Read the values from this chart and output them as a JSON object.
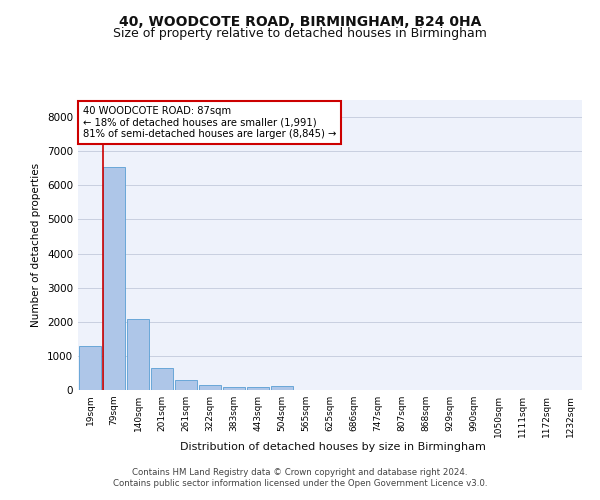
{
  "title1": "40, WOODCOTE ROAD, BIRMINGHAM, B24 0HA",
  "title2": "Size of property relative to detached houses in Birmingham",
  "xlabel": "Distribution of detached houses by size in Birmingham",
  "ylabel": "Number of detached properties",
  "categories": [
    "19sqm",
    "79sqm",
    "140sqm",
    "201sqm",
    "261sqm",
    "322sqm",
    "383sqm",
    "443sqm",
    "504sqm",
    "565sqm",
    "625sqm",
    "686sqm",
    "747sqm",
    "807sqm",
    "868sqm",
    "929sqm",
    "990sqm",
    "1050sqm",
    "1111sqm",
    "1172sqm",
    "1232sqm"
  ],
  "values": [
    1300,
    6550,
    2080,
    650,
    295,
    155,
    95,
    75,
    115,
    0,
    0,
    0,
    0,
    0,
    0,
    0,
    0,
    0,
    0,
    0,
    0
  ],
  "bar_color": "#aec6e8",
  "bar_edgecolor": "#5a9fd4",
  "vline_color": "#cc0000",
  "annotation_text": "40 WOODCOTE ROAD: 87sqm\n← 18% of detached houses are smaller (1,991)\n81% of semi-detached houses are larger (8,845) →",
  "annotation_box_facecolor": "#ffffff",
  "annotation_box_edgecolor": "#cc0000",
  "ylim": [
    0,
    8500
  ],
  "yticks": [
    0,
    1000,
    2000,
    3000,
    4000,
    5000,
    6000,
    7000,
    8000
  ],
  "footer1": "Contains HM Land Registry data © Crown copyright and database right 2024.",
  "footer2": "Contains public sector information licensed under the Open Government Licence v3.0.",
  "bg_color": "#eef2fb",
  "grid_color": "#c8cfe0",
  "title1_fontsize": 10,
  "title2_fontsize": 9
}
